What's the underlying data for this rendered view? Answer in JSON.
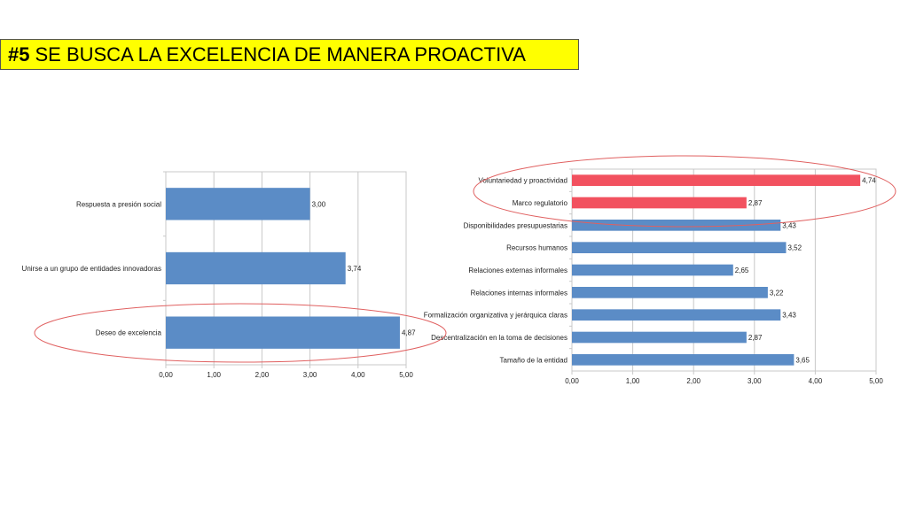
{
  "slide": {
    "title_number": "#5",
    "title_text": "SE BUSCA LA EXCELENCIA DE MANERA PROACTIVA"
  },
  "colors": {
    "blue": "#5b8cc6",
    "red": "#f2515f",
    "banner": "#ffff00",
    "highlight_ellipse": "#e06060"
  },
  "chart_data": [
    {
      "type": "bar",
      "orientation": "horizontal",
      "categories": [
        "Respuesta a presión social",
        "Unirse a un grupo de entidades innovadoras",
        "Deseo de excelencia"
      ],
      "values": [
        3.0,
        3.74,
        4.87
      ],
      "value_labels": [
        "3,00",
        "3,74",
        "4,87"
      ],
      "xlim": [
        0,
        5
      ],
      "x_ticks": [
        "0,00",
        "1,00",
        "2,00",
        "3,00",
        "4,00",
        "5,00"
      ],
      "grid": true,
      "highlighted_categories": [
        "Deseo de excelencia"
      ]
    },
    {
      "type": "bar",
      "orientation": "horizontal",
      "categories": [
        "Voluntariedad y proactividad",
        "Marco regulatorio",
        "Disponibilidades presupuestarias",
        "Recursos humanos",
        "Relaciones externas informales",
        "Relaciones internas informales",
        "Formalización organizativa y jerárquica claras",
        "Descentralización en la toma de decisiones",
        "Tamaño de la entidad"
      ],
      "values": [
        4.74,
        2.87,
        3.43,
        3.52,
        2.65,
        3.22,
        3.43,
        2.87,
        3.65
      ],
      "value_labels": [
        "4,74",
        "2,87",
        "3,43",
        "3,52",
        "2,65",
        "3,22",
        "3,43",
        "2,87",
        "3,65"
      ],
      "bar_colors": [
        "red",
        "red",
        "blue",
        "blue",
        "blue",
        "blue",
        "blue",
        "blue",
        "blue"
      ],
      "xlim": [
        0,
        5
      ],
      "x_ticks": [
        "0,00",
        "1,00",
        "2,00",
        "3,00",
        "4,00",
        "5,00"
      ],
      "grid": true,
      "highlighted_categories": [
        "Voluntariedad y proactividad",
        "Marco regulatorio"
      ]
    }
  ]
}
